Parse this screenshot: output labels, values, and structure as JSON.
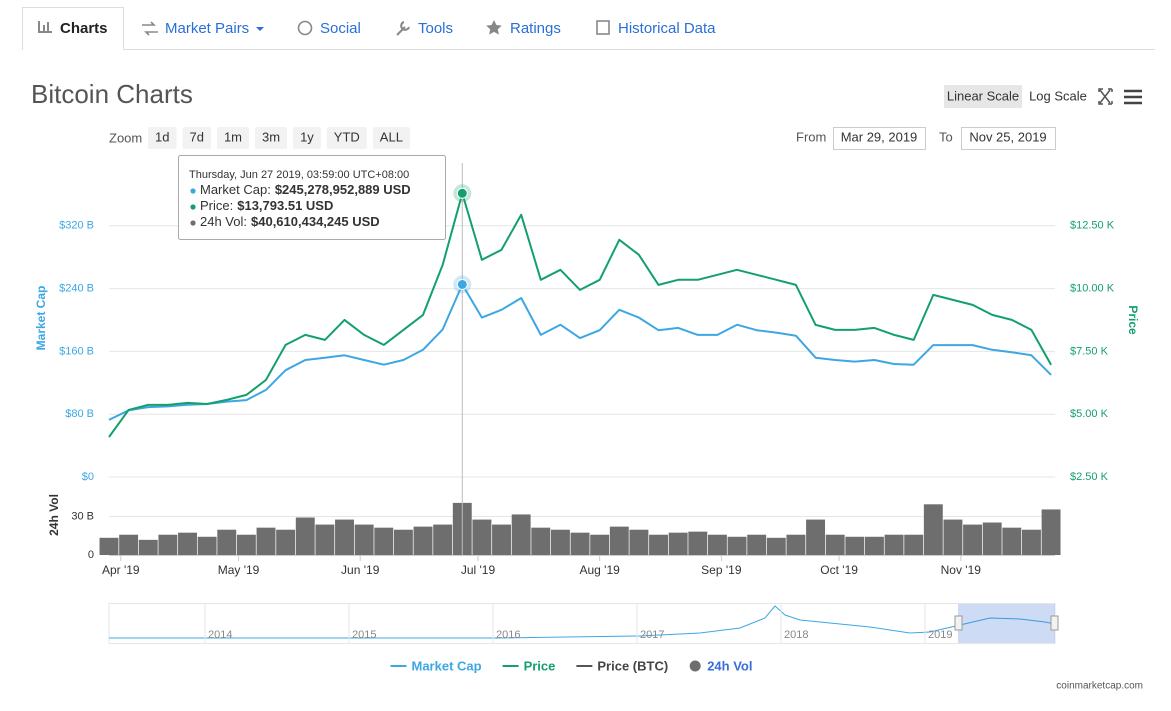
{
  "tabs": [
    "Charts",
    "Market Pairs",
    "Social",
    "Tools",
    "Ratings",
    "Historical Data"
  ],
  "chart_data": {
    "type": "line",
    "title": "Bitcoin Charts",
    "scale_buttons": [
      "Linear Scale",
      "Log Scale"
    ],
    "zoom_label": "Zoom",
    "zoom_buttons": [
      "1d",
      "7d",
      "1m",
      "3m",
      "1y",
      "YTD",
      "ALL"
    ],
    "from_label": "From",
    "from_value": "Mar 29, 2019",
    "to_label": "To",
    "to_value": "Nov 25, 2019",
    "y_label": "Market Cap",
    "y2_label": "Price",
    "vol_label": "24h Vol",
    "xlim": [
      0,
      241
    ],
    "xticks": [
      {
        "value": 3,
        "label": "Apr '19"
      },
      {
        "value": 33,
        "label": "May '19"
      },
      {
        "value": 64,
        "label": "Jun '19"
      },
      {
        "value": 94,
        "label": "Jul '19"
      },
      {
        "value": 125,
        "label": "Aug '19"
      },
      {
        "value": 156,
        "label": "Sep '19"
      },
      {
        "value": 186,
        "label": "Oct '19"
      },
      {
        "value": 217,
        "label": "Nov '19"
      }
    ],
    "ylim": [
      0,
      400
    ],
    "yticks": [
      {
        "value": 0,
        "label": "$0"
      },
      {
        "value": 80,
        "label": "$80 B"
      },
      {
        "value": 160,
        "label": "$160 B"
      },
      {
        "value": 240,
        "label": "$240 B"
      },
      {
        "value": 320,
        "label": "$320 B"
      }
    ],
    "y2lim": [
      2500,
      15000
    ],
    "y2ticks": [
      {
        "value": 2500,
        "label": "$2.50 K"
      },
      {
        "value": 5000,
        "label": "$5.00 K"
      },
      {
        "value": 7500,
        "label": "$7.50 K"
      },
      {
        "value": 10000,
        "label": "$10.00 K"
      },
      {
        "value": 12500,
        "label": "$12.50 K"
      }
    ],
    "vol_ylim": [
      0,
      60
    ],
    "vol_yticks": [
      0,
      {
        "value": 30,
        "label": "30 B"
      }
    ],
    "grid": true,
    "x": [
      0,
      5,
      10,
      15,
      20,
      25,
      30,
      35,
      40,
      45,
      50,
      55,
      60,
      65,
      70,
      75,
      80,
      85,
      90,
      95,
      100,
      105,
      110,
      115,
      120,
      125,
      130,
      135,
      140,
      145,
      150,
      155,
      160,
      165,
      170,
      175,
      180,
      185,
      190,
      195,
      200,
      205,
      210,
      215,
      220,
      225,
      230,
      235,
      240
    ],
    "series": [
      {
        "name": "Market Cap",
        "color": "#3da7e3",
        "kind": "line",
        "axis": "y",
        "values": [
          72.7,
          85,
          89,
          90,
          92,
          93,
          96,
          98,
          111,
          136,
          149,
          152,
          155,
          149,
          143,
          149,
          162,
          188,
          245.28,
          203,
          213,
          228,
          181,
          194,
          177,
          187,
          213,
          203,
          187,
          190,
          181,
          181,
          194,
          187,
          184,
          180,
          152,
          149,
          147,
          149,
          144,
          143,
          168,
          168,
          168,
          162,
          159,
          155,
          130
        ]
      },
      {
        "name": "Price",
        "color": "#14a06d",
        "kind": "line",
        "axis": "y2",
        "values": [
          4094,
          5169,
          5369,
          5369,
          5448,
          5408,
          5568,
          5767,
          6365,
          7759,
          8157,
          7958,
          8755,
          8157,
          7759,
          8357,
          8954,
          10946,
          13793.51,
          11146,
          11544,
          12938,
          10349,
          10747,
          9950,
          10349,
          11942,
          11345,
          10149,
          10349,
          10349,
          10548,
          10747,
          10548,
          10349,
          10149,
          8556,
          8357,
          8357,
          8436,
          8157,
          7958,
          9751,
          9552,
          9353,
          8954,
          8755,
          8357,
          6962
        ]
      },
      {
        "name": "Price (BTC)",
        "color": "#555555",
        "kind": "line",
        "axis": "y",
        "values": [
          null,
          null,
          null,
          null,
          null,
          null,
          null,
          null,
          null,
          null,
          null,
          null,
          null,
          null,
          null,
          null,
          null,
          null,
          null,
          null,
          null,
          null,
          null,
          null,
          null,
          null,
          null,
          null,
          null,
          null,
          null,
          null,
          null,
          null,
          null,
          null,
          null,
          null,
          null,
          null,
          null,
          null,
          null,
          null,
          null,
          null,
          null,
          null,
          null
        ]
      },
      {
        "name": "24h Vol",
        "color": "#6e6e6e",
        "kind": "column",
        "axis": "vol",
        "values": [
          13.4,
          15.8,
          11.8,
          15.8,
          17.4,
          14.2,
          19.7,
          15.8,
          21.3,
          19.7,
          29.2,
          23.7,
          27.6,
          23.7,
          21.3,
          19.7,
          22.1,
          23.7,
          40.61,
          27.6,
          23.7,
          31.6,
          21.3,
          19.7,
          17.4,
          15.8,
          22.1,
          19.7,
          15.8,
          17.4,
          18.2,
          15.8,
          14.2,
          15.8,
          13.4,
          15.8,
          27.6,
          15.8,
          14.2,
          14.2,
          15.8,
          15.8,
          39.5,
          27.6,
          23.7,
          25.3,
          21.3,
          19.7,
          35.5
        ]
      }
    ],
    "tooltip": {
      "x": 90,
      "date": "Thursday, Jun 27 2019, 03:59:00 UTC+08:00",
      "items": [
        {
          "label": "Market Cap:",
          "value": "$245,278,952,889 USD"
        },
        {
          "label": "Price:",
          "value": "$13,793.51 USD"
        },
        {
          "label": "24h Vol:",
          "value": "$40,610,434,245 USD"
        }
      ]
    },
    "navigator_years": [
      "2014",
      "2015",
      "2016",
      "2017",
      "2018",
      "2019"
    ],
    "watermark": "coinmarketcap.com"
  }
}
